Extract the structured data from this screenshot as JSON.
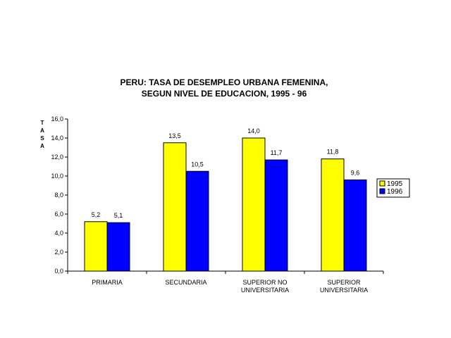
{
  "chart_data": {
    "type": "bar",
    "title_lines": [
      "PERU: TASA DE DESEMPLEO URBANA FEMENINA,",
      "SEGUN NIVEL DE EDUCACION, 1995 - 96"
    ],
    "ylabel": "TASA",
    "categories": [
      [
        "PRIMARIA"
      ],
      [
        "SECUNDARIA"
      ],
      [
        "SUPERIOR NO",
        "UNIVERSITARIA"
      ],
      [
        "SUPERIOR",
        "UNIVERSITARIA"
      ]
    ],
    "series": [
      {
        "name": "1995",
        "color": "#ffff00",
        "values": [
          5.2,
          13.5,
          14.0,
          11.8
        ],
        "labels": [
          "5,2",
          "13,5",
          "14,0",
          "11,8"
        ]
      },
      {
        "name": "1996",
        "color": "#0000ff",
        "values": [
          5.1,
          10.5,
          11.7,
          9.6
        ],
        "labels": [
          "5,1",
          "10,5",
          "11,7",
          "9,6"
        ]
      }
    ],
    "ylim": [
      0,
      16
    ],
    "yticks": [
      0,
      2,
      4,
      6,
      8,
      10,
      12,
      14,
      16
    ],
    "ytick_labels": [
      "0,0",
      "2,0",
      "4,0",
      "6,0",
      "8,0",
      "10,0",
      "12,0",
      "14,0",
      "16,0"
    ],
    "grid": false,
    "legend_position": "right"
  }
}
